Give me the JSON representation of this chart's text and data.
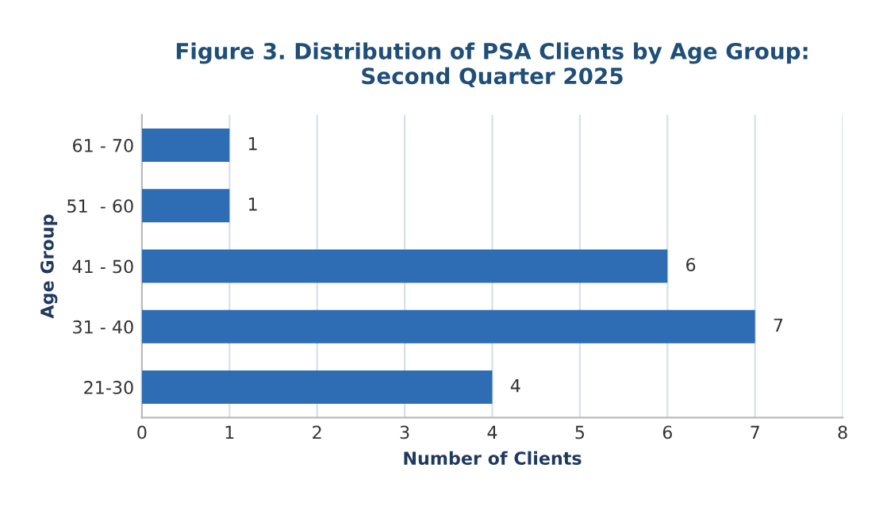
{
  "chart_data": {
    "type": "bar",
    "orientation": "horizontal",
    "title": "Figure 3. Distribution of PSA Clients by Age Group:\nSecond Quarter 2025",
    "xlabel": "Number of Clients",
    "ylabel": "Age Group",
    "categories": [
      "61 - 70",
      "51  - 60",
      "41 - 50",
      "31 - 40",
      "21-30"
    ],
    "values": [
      1,
      1,
      6,
      7,
      4
    ],
    "color": "#2e6db4",
    "xlim": [
      0,
      8
    ],
    "xticks": [
      0,
      1,
      2,
      3,
      4,
      5,
      6,
      7,
      8
    ],
    "grid": "x",
    "data_labels": true
  }
}
